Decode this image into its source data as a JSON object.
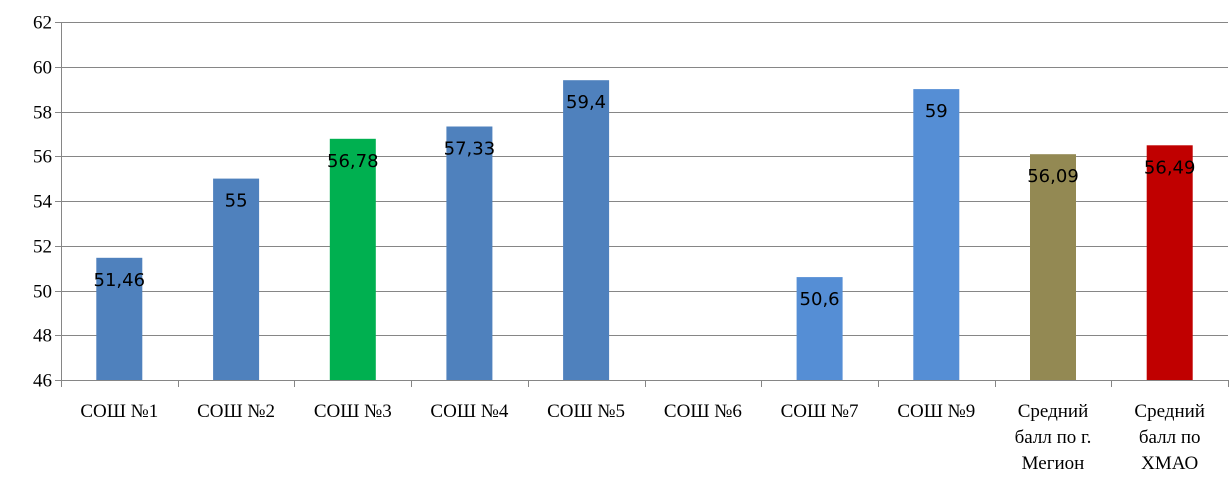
{
  "chart_data": {
    "type": "bar",
    "categories": [
      [
        "СОШ №1"
      ],
      [
        "СОШ №2"
      ],
      [
        "СОШ №3"
      ],
      [
        "СОШ №4"
      ],
      [
        "СОШ №5"
      ],
      [
        "СОШ №6"
      ],
      [
        "СОШ №7"
      ],
      [
        "СОШ №9"
      ],
      [
        "Средний",
        "балл по г.",
        "Мегион"
      ],
      [
        "Средний",
        "балл по",
        "ХМАО"
      ]
    ],
    "values": [
      51.46,
      55,
      56.78,
      57.33,
      59.4,
      null,
      50.6,
      59,
      56.09,
      56.49
    ],
    "data_labels": [
      "51,46",
      "55",
      "56,78",
      "57,33",
      "59,4",
      "",
      "50,6",
      "59",
      "56,09",
      "56,49"
    ],
    "colors": [
      "#4f81bd",
      "#4f81bd",
      "#00b050",
      "#4f81bd",
      "#4f81bd",
      "#4f81bd",
      "#558ed5",
      "#558ed5",
      "#938953",
      "#c00000"
    ],
    "ylim": [
      46,
      62
    ],
    "yticks": [
      46,
      48,
      50,
      52,
      54,
      56,
      58,
      60,
      62
    ],
    "grid": true,
    "legend": "none"
  }
}
